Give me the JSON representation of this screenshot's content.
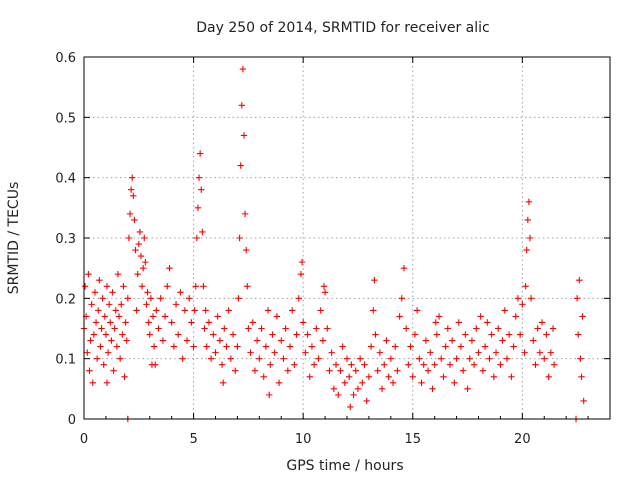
{
  "chart_data": {
    "type": "scatter",
    "title": "Day 250 of 2014, SRMTID for receiver alic",
    "xlabel": "GPS time / hours",
    "ylabel": "SRMTID / TECUs",
    "xlim": [
      0,
      24
    ],
    "ylim": [
      0,
      0.6
    ],
    "xticks": [
      0,
      5,
      10,
      15,
      20
    ],
    "yticks": [
      0,
      0.1,
      0.2,
      0.3,
      0.4,
      0.5,
      0.6
    ],
    "xtick_labels": [
      "0",
      "5",
      "10",
      "15",
      "20"
    ],
    "ytick_labels": [
      "0",
      "0.1",
      "0.2",
      "0.3",
      "0.4",
      "0.5",
      "0.6"
    ],
    "grid": true,
    "marker": "+",
    "color": "#ff0000",
    "series": [
      {
        "name": "SRMTID",
        "points": [
          [
            0.0,
            0.15
          ],
          [
            0.05,
            0.22
          ],
          [
            0.1,
            0.17
          ],
          [
            0.15,
            0.11
          ],
          [
            0.2,
            0.24
          ],
          [
            0.25,
            0.08
          ],
          [
            0.3,
            0.13
          ],
          [
            0.35,
            0.19
          ],
          [
            0.4,
            0.06
          ],
          [
            0.45,
            0.14
          ],
          [
            0.5,
            0.21
          ],
          [
            0.55,
            0.16
          ],
          [
            0.6,
            0.1
          ],
          [
            0.65,
            0.18
          ],
          [
            0.7,
            0.23
          ],
          [
            0.75,
            0.12
          ],
          [
            0.8,
            0.15
          ],
          [
            0.85,
            0.2
          ],
          [
            0.9,
            0.09
          ],
          [
            0.95,
            0.17
          ],
          [
            1.0,
            0.14
          ],
          [
            1.05,
            0.22
          ],
          [
            1.1,
            0.11
          ],
          [
            1.15,
            0.19
          ],
          [
            1.2,
            0.16
          ],
          [
            1.25,
            0.13
          ],
          [
            1.3,
            0.21
          ],
          [
            1.35,
            0.08
          ],
          [
            1.4,
            0.15
          ],
          [
            1.45,
            0.18
          ],
          [
            1.5,
            0.12
          ],
          [
            1.55,
            0.24
          ],
          [
            1.6,
            0.17
          ],
          [
            1.65,
            0.1
          ],
          [
            1.7,
            0.19
          ],
          [
            1.75,
            0.14
          ],
          [
            1.8,
            0.22
          ],
          [
            1.85,
            0.07
          ],
          [
            1.9,
            0.16
          ],
          [
            1.95,
            0.13
          ],
          [
            2.0,
            0.2
          ],
          [
            2.05,
            0.3
          ],
          [
            2.1,
            0.34
          ],
          [
            2.15,
            0.38
          ],
          [
            2.2,
            0.4
          ],
          [
            2.25,
            0.37
          ],
          [
            2.3,
            0.33
          ],
          [
            2.35,
            0.28
          ],
          [
            2.4,
            0.18
          ],
          [
            2.45,
            0.24
          ],
          [
            2.5,
            0.29
          ],
          [
            2.55,
            0.31
          ],
          [
            2.6,
            0.27
          ],
          [
            2.65,
            0.22
          ],
          [
            2.7,
            0.25
          ],
          [
            2.75,
            0.3
          ],
          [
            2.8,
            0.26
          ],
          [
            2.85,
            0.19
          ],
          [
            2.9,
            0.21
          ],
          [
            2.95,
            0.16
          ],
          [
            3.0,
            0.14
          ],
          [
            3.05,
            0.2
          ],
          [
            3.1,
            0.09
          ],
          [
            3.15,
            0.17
          ],
          [
            3.2,
            0.12
          ],
          [
            3.3,
            0.18
          ],
          [
            3.4,
            0.15
          ],
          [
            3.5,
            0.2
          ],
          [
            3.6,
            0.13
          ],
          [
            3.7,
            0.17
          ],
          [
            3.8,
            0.22
          ],
          [
            3.9,
            0.25
          ],
          [
            4.0,
            0.16
          ],
          [
            4.1,
            0.12
          ],
          [
            4.2,
            0.19
          ],
          [
            4.3,
            0.14
          ],
          [
            4.4,
            0.21
          ],
          [
            4.5,
            0.1
          ],
          [
            4.6,
            0.18
          ],
          [
            4.7,
            0.13
          ],
          [
            4.8,
            0.2
          ],
          [
            4.9,
            0.16
          ],
          [
            5.0,
            0.12
          ],
          [
            5.05,
            0.18
          ],
          [
            5.1,
            0.22
          ],
          [
            5.15,
            0.3
          ],
          [
            5.2,
            0.35
          ],
          [
            5.25,
            0.4
          ],
          [
            5.3,
            0.44
          ],
          [
            5.35,
            0.38
          ],
          [
            5.4,
            0.31
          ],
          [
            5.45,
            0.22
          ],
          [
            5.5,
            0.15
          ],
          [
            5.55,
            0.18
          ],
          [
            5.6,
            0.12
          ],
          [
            5.7,
            0.16
          ],
          [
            5.8,
            0.1
          ],
          [
            5.9,
            0.14
          ],
          [
            6.0,
            0.11
          ],
          [
            6.1,
            0.17
          ],
          [
            6.2,
            0.13
          ],
          [
            6.3,
            0.09
          ],
          [
            6.4,
            0.15
          ],
          [
            6.5,
            0.12
          ],
          [
            6.6,
            0.18
          ],
          [
            6.7,
            0.1
          ],
          [
            6.8,
            0.14
          ],
          [
            6.9,
            0.08
          ],
          [
            7.0,
            0.12
          ],
          [
            7.05,
            0.2
          ],
          [
            7.1,
            0.3
          ],
          [
            7.15,
            0.42
          ],
          [
            7.2,
            0.52
          ],
          [
            7.25,
            0.58
          ],
          [
            7.3,
            0.47
          ],
          [
            7.35,
            0.34
          ],
          [
            7.4,
            0.28
          ],
          [
            7.45,
            0.22
          ],
          [
            7.5,
            0.15
          ],
          [
            7.6,
            0.11
          ],
          [
            7.7,
            0.16
          ],
          [
            7.8,
            0.08
          ],
          [
            7.9,
            0.13
          ],
          [
            8.0,
            0.1
          ],
          [
            8.1,
            0.15
          ],
          [
            8.2,
            0.07
          ],
          [
            8.3,
            0.12
          ],
          [
            8.4,
            0.18
          ],
          [
            8.5,
            0.09
          ],
          [
            8.6,
            0.14
          ],
          [
            8.7,
            0.11
          ],
          [
            8.8,
            0.17
          ],
          [
            8.9,
            0.06
          ],
          [
            9.0,
            0.13
          ],
          [
            9.1,
            0.1
          ],
          [
            9.2,
            0.15
          ],
          [
            9.3,
            0.08
          ],
          [
            9.4,
            0.12
          ],
          [
            9.5,
            0.18
          ],
          [
            9.6,
            0.09
          ],
          [
            9.7,
            0.14
          ],
          [
            9.8,
            0.2
          ],
          [
            9.9,
            0.24
          ],
          [
            10.0,
            0.16
          ],
          [
            10.1,
            0.11
          ],
          [
            10.2,
            0.14
          ],
          [
            10.3,
            0.07
          ],
          [
            10.4,
            0.12
          ],
          [
            10.5,
            0.09
          ],
          [
            10.6,
            0.15
          ],
          [
            10.7,
            0.1
          ],
          [
            10.8,
            0.18
          ],
          [
            10.9,
            0.13
          ],
          [
            11.0,
            0.21
          ],
          [
            11.1,
            0.15
          ],
          [
            11.2,
            0.08
          ],
          [
            11.3,
            0.11
          ],
          [
            11.4,
            0.05
          ],
          [
            11.5,
            0.09
          ],
          [
            11.6,
            0.04
          ],
          [
            11.7,
            0.08
          ],
          [
            11.8,
            0.12
          ],
          [
            11.9,
            0.06
          ],
          [
            12.0,
            0.1
          ],
          [
            12.1,
            0.07
          ],
          [
            12.2,
            0.09
          ],
          [
            12.3,
            0.04
          ],
          [
            12.4,
            0.08
          ],
          [
            12.5,
            0.05
          ],
          [
            12.6,
            0.1
          ],
          [
            12.7,
            0.06
          ],
          [
            12.8,
            0.09
          ],
          [
            12.9,
            0.03
          ],
          [
            13.0,
            0.07
          ],
          [
            13.1,
            0.12
          ],
          [
            13.2,
            0.18
          ],
          [
            13.3,
            0.14
          ],
          [
            13.4,
            0.08
          ],
          [
            13.5,
            0.11
          ],
          [
            13.6,
            0.05
          ],
          [
            13.7,
            0.09
          ],
          [
            13.8,
            0.13
          ],
          [
            13.9,
            0.07
          ],
          [
            14.0,
            0.1
          ],
          [
            14.1,
            0.06
          ],
          [
            14.2,
            0.12
          ],
          [
            14.3,
            0.08
          ],
          [
            14.4,
            0.17
          ],
          [
            14.5,
            0.2
          ],
          [
            14.6,
            0.25
          ],
          [
            14.7,
            0.15
          ],
          [
            14.8,
            0.09
          ],
          [
            14.9,
            0.12
          ],
          [
            15.0,
            0.07
          ],
          [
            15.1,
            0.14
          ],
          [
            15.2,
            0.18
          ],
          [
            15.3,
            0.1
          ],
          [
            15.4,
            0.06
          ],
          [
            15.5,
            0.09
          ],
          [
            15.6,
            0.13
          ],
          [
            15.7,
            0.08
          ],
          [
            15.8,
            0.11
          ],
          [
            15.9,
            0.05
          ],
          [
            16.0,
            0.09
          ],
          [
            16.1,
            0.14
          ],
          [
            16.2,
            0.17
          ],
          [
            16.3,
            0.1
          ],
          [
            16.4,
            0.07
          ],
          [
            16.5,
            0.12
          ],
          [
            16.6,
            0.15
          ],
          [
            16.7,
            0.09
          ],
          [
            16.8,
            0.13
          ],
          [
            16.9,
            0.06
          ],
          [
            17.0,
            0.1
          ],
          [
            17.1,
            0.16
          ],
          [
            17.2,
            0.12
          ],
          [
            17.3,
            0.08
          ],
          [
            17.4,
            0.14
          ],
          [
            17.5,
            0.05
          ],
          [
            17.6,
            0.1
          ],
          [
            17.7,
            0.13
          ],
          [
            17.8,
            0.09
          ],
          [
            17.9,
            0.15
          ],
          [
            18.0,
            0.11
          ],
          [
            18.1,
            0.17
          ],
          [
            18.2,
            0.08
          ],
          [
            18.3,
            0.12
          ],
          [
            18.4,
            0.16
          ],
          [
            18.5,
            0.1
          ],
          [
            18.6,
            0.14
          ],
          [
            18.7,
            0.07
          ],
          [
            18.8,
            0.11
          ],
          [
            18.9,
            0.15
          ],
          [
            19.0,
            0.09
          ],
          [
            19.1,
            0.13
          ],
          [
            19.2,
            0.18
          ],
          [
            19.3,
            0.1
          ],
          [
            19.4,
            0.14
          ],
          [
            19.5,
            0.07
          ],
          [
            19.6,
            0.12
          ],
          [
            19.7,
            0.17
          ],
          [
            19.8,
            0.2
          ],
          [
            19.9,
            0.14
          ],
          [
            20.0,
            0.19
          ],
          [
            20.1,
            0.11
          ],
          [
            20.15,
            0.22
          ],
          [
            20.2,
            0.28
          ],
          [
            20.25,
            0.33
          ],
          [
            20.3,
            0.36
          ],
          [
            20.35,
            0.3
          ],
          [
            20.4,
            0.2
          ],
          [
            20.5,
            0.13
          ],
          [
            20.6,
            0.09
          ],
          [
            20.7,
            0.15
          ],
          [
            20.8,
            0.11
          ],
          [
            20.9,
            0.16
          ],
          [
            21.0,
            0.1
          ],
          [
            21.1,
            0.14
          ],
          [
            21.2,
            0.07
          ],
          [
            21.3,
            0.11
          ],
          [
            21.4,
            0.15
          ],
          [
            21.45,
            0.09
          ],
          [
            22.45,
            0.0
          ],
          [
            22.5,
            0.2
          ],
          [
            22.55,
            0.14
          ],
          [
            22.6,
            0.23
          ],
          [
            22.65,
            0.1
          ],
          [
            22.7,
            0.07
          ],
          [
            22.75,
            0.17
          ],
          [
            22.8,
            0.03
          ],
          [
            2.0,
            0.0
          ],
          [
            1.05,
            0.06
          ],
          [
            3.25,
            0.09
          ],
          [
            6.35,
            0.06
          ],
          [
            9.95,
            0.26
          ],
          [
            13.25,
            0.23
          ],
          [
            16.05,
            0.16
          ],
          [
            8.45,
            0.04
          ],
          [
            10.95,
            0.22
          ],
          [
            12.15,
            0.02
          ]
        ]
      }
    ]
  }
}
